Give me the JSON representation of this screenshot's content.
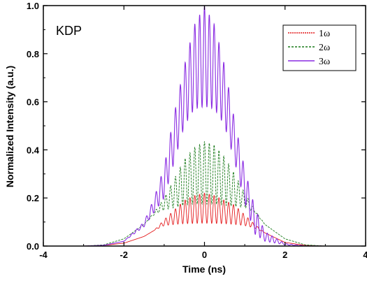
{
  "chart_data": {
    "type": "line",
    "annotation": "KDP",
    "xlabel": "Time (ns)",
    "ylabel": "Normalized Intensity (a.u.)",
    "xlim": [
      -4,
      4
    ],
    "ylim": [
      0,
      1.0
    ],
    "x_ticks": [
      -4,
      -2,
      0,
      2,
      4
    ],
    "x_tick_labels": [
      "-4",
      "-2",
      "0",
      "2",
      "4"
    ],
    "y_ticks": [
      0.0,
      0.2,
      0.4,
      0.6,
      0.8,
      1.0
    ],
    "y_tick_labels": [
      "0.0",
      "0.2",
      "0.4",
      "0.6",
      "0.8",
      "1.0"
    ],
    "grid": false,
    "legend_position": "top-right",
    "series": [
      {
        "name": "1ω",
        "color": "#e41a1c",
        "style": "dotted-solid",
        "envelope_max": [
          [
            -3.0,
            0.0
          ],
          [
            -2.5,
            0.003
          ],
          [
            -2.0,
            0.012
          ],
          [
            -1.5,
            0.04
          ],
          [
            -1.25,
            0.065
          ],
          [
            -1.0,
            0.11
          ],
          [
            -0.75,
            0.15
          ],
          [
            -0.5,
            0.19
          ],
          [
            -0.25,
            0.21
          ],
          [
            0.0,
            0.22
          ],
          [
            0.25,
            0.21
          ],
          [
            0.5,
            0.19
          ],
          [
            0.75,
            0.17
          ],
          [
            1.0,
            0.13
          ],
          [
            1.25,
            0.09
          ],
          [
            1.5,
            0.055
          ],
          [
            2.0,
            0.015
          ],
          [
            2.5,
            0.003
          ],
          [
            3.0,
            0.0
          ]
        ],
        "envelope_min": [
          [
            -3.0,
            0.0
          ],
          [
            -2.5,
            0.003
          ],
          [
            -2.0,
            0.012
          ],
          [
            -1.5,
            0.04
          ],
          [
            -1.25,
            0.065
          ],
          [
            -1.0,
            0.085
          ],
          [
            -0.75,
            0.09
          ],
          [
            -0.5,
            0.093
          ],
          [
            -0.25,
            0.094
          ],
          [
            0.0,
            0.095
          ],
          [
            0.25,
            0.094
          ],
          [
            0.5,
            0.093
          ],
          [
            0.75,
            0.09
          ],
          [
            1.0,
            0.085
          ],
          [
            1.25,
            0.075
          ],
          [
            1.5,
            0.055
          ],
          [
            2.0,
            0.015
          ],
          [
            2.5,
            0.003
          ],
          [
            3.0,
            0.0
          ]
        ]
      },
      {
        "name": "2ω",
        "color": "#1a7a1a",
        "style": "dashed",
        "envelope_max": [
          [
            -3.0,
            0.0
          ],
          [
            -2.5,
            0.005
          ],
          [
            -2.0,
            0.03
          ],
          [
            -1.5,
            0.09
          ],
          [
            -1.25,
            0.14
          ],
          [
            -1.0,
            0.2
          ],
          [
            -0.75,
            0.28
          ],
          [
            -0.5,
            0.36
          ],
          [
            -0.25,
            0.41
          ],
          [
            0.0,
            0.435
          ],
          [
            0.25,
            0.42
          ],
          [
            0.5,
            0.37
          ],
          [
            0.75,
            0.3
          ],
          [
            1.0,
            0.22
          ],
          [
            1.25,
            0.15
          ],
          [
            1.5,
            0.09
          ],
          [
            2.0,
            0.03
          ],
          [
            2.5,
            0.005
          ],
          [
            3.0,
            0.0
          ]
        ],
        "envelope_min": [
          [
            -3.0,
            0.0
          ],
          [
            -2.5,
            0.005
          ],
          [
            -2.0,
            0.03
          ],
          [
            -1.5,
            0.09
          ],
          [
            -1.25,
            0.13
          ],
          [
            -1.0,
            0.15
          ],
          [
            -0.75,
            0.16
          ],
          [
            -0.5,
            0.17
          ],
          [
            -0.25,
            0.175
          ],
          [
            0.0,
            0.175
          ],
          [
            0.25,
            0.175
          ],
          [
            0.5,
            0.17
          ],
          [
            0.75,
            0.165
          ],
          [
            1.0,
            0.16
          ],
          [
            1.25,
            0.14
          ],
          [
            1.5,
            0.09
          ],
          [
            2.0,
            0.03
          ],
          [
            2.5,
            0.005
          ],
          [
            3.0,
            0.0
          ]
        ]
      },
      {
        "name": "3ω",
        "color": "#8a2be2",
        "style": "solid",
        "envelope_max": [
          [
            -3.0,
            0.0
          ],
          [
            -2.5,
            0.003
          ],
          [
            -2.0,
            0.02
          ],
          [
            -1.5,
            0.1
          ],
          [
            -1.25,
            0.2
          ],
          [
            -1.0,
            0.33
          ],
          [
            -0.75,
            0.55
          ],
          [
            -0.5,
            0.75
          ],
          [
            -0.25,
            0.92
          ],
          [
            0.0,
            1.0
          ],
          [
            0.25,
            0.92
          ],
          [
            0.5,
            0.75
          ],
          [
            0.75,
            0.52
          ],
          [
            1.0,
            0.32
          ],
          [
            1.25,
            0.16
          ],
          [
            1.5,
            0.06
          ],
          [
            2.0,
            0.01
          ],
          [
            2.5,
            0.001
          ],
          [
            3.0,
            0.0
          ]
        ],
        "envelope_min": [
          [
            -3.0,
            0.0
          ],
          [
            -2.5,
            0.003
          ],
          [
            -2.0,
            0.02
          ],
          [
            -1.5,
            0.08
          ],
          [
            -1.25,
            0.14
          ],
          [
            -1.0,
            0.2
          ],
          [
            -0.75,
            0.35
          ],
          [
            -0.5,
            0.5
          ],
          [
            -0.25,
            0.57
          ],
          [
            0.0,
            0.58
          ],
          [
            0.25,
            0.57
          ],
          [
            0.5,
            0.5
          ],
          [
            0.75,
            0.35
          ],
          [
            1.0,
            0.18
          ],
          [
            1.25,
            0.05
          ],
          [
            1.5,
            0.02
          ],
          [
            2.0,
            0.005
          ],
          [
            2.5,
            0.0
          ],
          [
            3.0,
            0.0
          ]
        ]
      }
    ]
  }
}
